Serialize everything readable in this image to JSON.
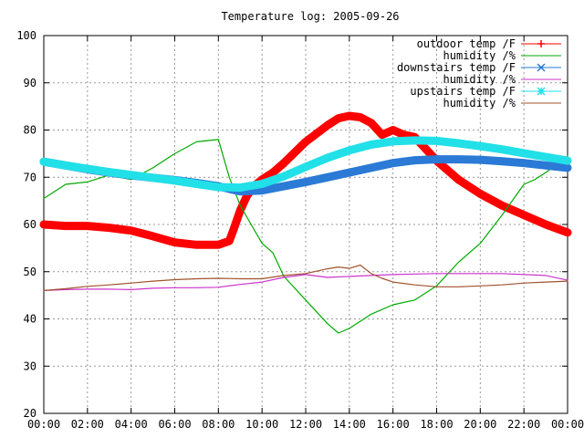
{
  "chart_data": {
    "type": "line",
    "title": "Temperature log: 2005-09-26",
    "xlabel": "",
    "ylabel": "",
    "x_ticks": [
      "00:00",
      "02:00",
      "04:00",
      "06:00",
      "08:00",
      "10:00",
      "12:00",
      "14:00",
      "16:00",
      "18:00",
      "20:00",
      "22:00",
      "00:00"
    ],
    "y_ticks": [
      20,
      30,
      40,
      50,
      60,
      70,
      80,
      90,
      100
    ],
    "xlim": [
      0,
      24
    ],
    "ylim": [
      20,
      100
    ],
    "grid": true,
    "legend_position": "top-right",
    "series": [
      {
        "name": "outdoor temp /F",
        "color": "#ff0000",
        "marker": "plus",
        "x": [
          0,
          1,
          2,
          3,
          4,
          5,
          6,
          7,
          8,
          8.5,
          8.7,
          9,
          9.3,
          9.6,
          10,
          10.5,
          11,
          12,
          13,
          13.5,
          14,
          14.5,
          15,
          15.5,
          16,
          16.5,
          17,
          18,
          19,
          20,
          21,
          22,
          23,
          24
        ],
        "y": [
          60,
          59.7,
          59.7,
          59.3,
          58.7,
          57.5,
          56.2,
          55.7,
          55.7,
          56.5,
          59,
          63,
          66,
          68,
          69.5,
          71,
          73,
          77.5,
          81,
          82.5,
          83,
          82.7,
          81.5,
          79,
          80,
          79,
          78.5,
          73.5,
          69.5,
          66.5,
          64,
          62,
          60,
          58.3
        ]
      },
      {
        "name": "humidity /%",
        "color": "#00aa00",
        "marker": "none",
        "x": [
          0,
          1,
          2,
          3,
          4,
          5,
          6,
          7,
          8,
          8.5,
          9,
          9.5,
          10,
          10.5,
          11,
          12,
          13,
          13.5,
          14,
          14.5,
          15,
          16,
          17,
          18,
          19,
          20,
          21,
          22,
          22.5,
          23,
          24
        ],
        "y": [
          65.5,
          68.5,
          69,
          70.5,
          69.5,
          72,
          75,
          77.5,
          78,
          70,
          64,
          60,
          56,
          54,
          49,
          44,
          39,
          37,
          38,
          39.5,
          41,
          43,
          44,
          47,
          52,
          56,
          62,
          68.5,
          69.5,
          71,
          74.5
        ]
      },
      {
        "name": "downstairs temp /F",
        "color": "#2a7ad6",
        "marker": "x",
        "x": [
          0,
          1,
          2,
          3,
          4,
          5,
          6,
          7,
          8,
          9,
          10,
          11,
          12,
          13,
          14,
          15,
          16,
          17,
          18,
          19,
          20,
          21,
          22,
          23,
          24
        ],
        "y": [
          73.3,
          72.5,
          71.7,
          71,
          70.4,
          69.9,
          69.4,
          68.8,
          68.1,
          67,
          67.2,
          68.1,
          69,
          70,
          71,
          72,
          73,
          73.6,
          73.8,
          73.8,
          73.7,
          73.4,
          73,
          72.5,
          72
        ]
      },
      {
        "name": "humidity /%",
        "color": "#cc33cc",
        "marker": "none",
        "x": [
          0,
          1,
          2,
          3,
          4,
          5,
          6,
          7,
          8,
          9,
          10,
          11,
          12,
          13,
          14,
          15,
          16,
          17,
          18,
          19,
          20,
          21,
          22,
          23,
          24
        ],
        "y": [
          46,
          46.2,
          46.3,
          46.3,
          46.2,
          46.5,
          46.6,
          46.6,
          46.7,
          47.3,
          47.8,
          48.8,
          49.4,
          48.8,
          49,
          49.2,
          49.4,
          49.5,
          49.6,
          49.6,
          49.6,
          49.6,
          49.4,
          49.2,
          48.2
        ]
      },
      {
        "name": "upstairs temp /F",
        "color": "#22e0e8",
        "marker": "star",
        "x": [
          0,
          1,
          2,
          3,
          4,
          5,
          6,
          7,
          8,
          9,
          10,
          11,
          12,
          13,
          14,
          15,
          16,
          17,
          18,
          19,
          20,
          21,
          22,
          23,
          24
        ],
        "y": [
          73.3,
          72.5,
          71.8,
          71.1,
          70.5,
          69.9,
          69.3,
          68.6,
          67.9,
          67.8,
          68.6,
          70.2,
          72.2,
          74.1,
          75.7,
          76.9,
          77.6,
          77.8,
          77.7,
          77.2,
          76.6,
          75.9,
          75.1,
          74.3,
          73.5
        ]
      },
      {
        "name": "humidity /%",
        "color": "#a0522d",
        "marker": "none",
        "x": [
          0,
          1,
          2,
          3,
          4,
          5,
          6,
          7,
          8,
          9,
          10,
          11,
          12,
          13,
          13.5,
          14,
          14.5,
          15,
          15.5,
          16,
          17,
          18,
          19,
          20,
          21,
          22,
          23,
          24
        ],
        "y": [
          46,
          46.4,
          46.9,
          47.2,
          47.6,
          48,
          48.3,
          48.5,
          48.6,
          48.5,
          48.5,
          49.2,
          49.6,
          50.6,
          51,
          50.7,
          51.4,
          49.6,
          48.6,
          47.8,
          47.2,
          46.8,
          46.8,
          47,
          47.2,
          47.6,
          47.8,
          48
        ]
      }
    ]
  }
}
